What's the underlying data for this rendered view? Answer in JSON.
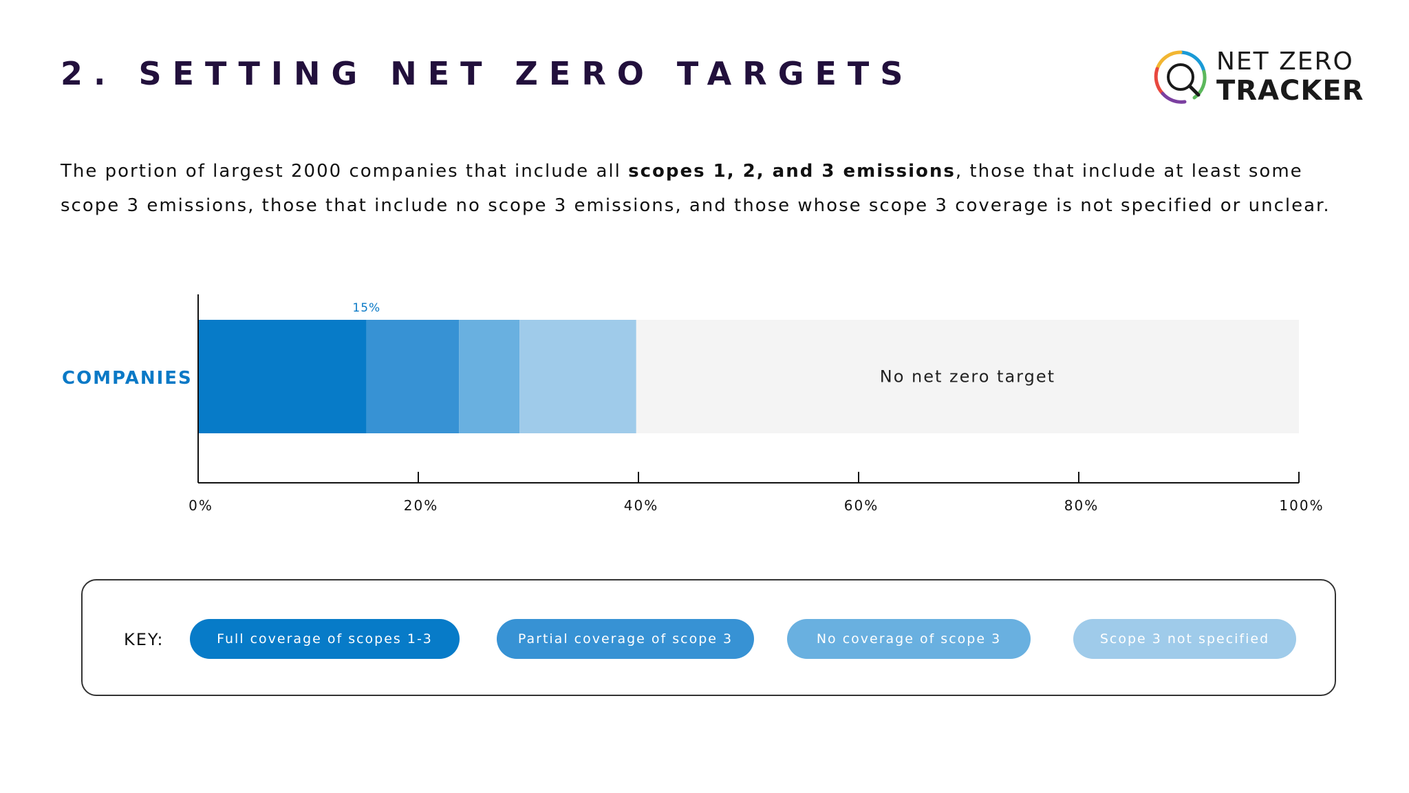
{
  "header": {
    "title": "2. SETTING NET ZERO TARGETS",
    "logo_line1": "NET ZERO",
    "logo_line2": "TRACKER"
  },
  "subtitle": {
    "part1": "The portion of largest 2000 companies that include all ",
    "bold": "scopes 1, 2, and 3 emissions",
    "part2": ", those that include at least some scope 3 emissions, those that include no scope 3 emissions, and those whose scope 3 coverage is not specified or unclear."
  },
  "colors": {
    "title": "#22103c",
    "full": "#077bc8",
    "partial": "#3792d4",
    "none": "#69b0e0",
    "unspecified": "#9fcbea",
    "no_target": "#f4f4f4",
    "category_label": "#0a79c6",
    "data_label": "#0a79c6"
  },
  "chart_data": {
    "type": "bar",
    "orientation": "horizontal",
    "stacked": true,
    "categories": [
      "COMPANIES"
    ],
    "series": [
      {
        "name": "Full coverage of scopes 1-3",
        "values": [
          15.3
        ],
        "color": "#077bc8",
        "label": "15%"
      },
      {
        "name": "Partial coverage of scope 3",
        "values": [
          8.4
        ],
        "color": "#3792d4",
        "label": ""
      },
      {
        "name": "No coverage of scope 3",
        "values": [
          5.5
        ],
        "color": "#69b0e0",
        "label": ""
      },
      {
        "name": "Scope 3 not specified",
        "values": [
          10.6
        ],
        "color": "#9fcbea",
        "label": ""
      },
      {
        "name": "",
        "values": [
          60.2
        ],
        "color": "#f4f4f4",
        "label": "No net zero target"
      }
    ],
    "x_ticks": [
      "0%",
      "20%",
      "40%",
      "60%",
      "80%",
      "100%"
    ],
    "xlim": [
      0,
      100
    ],
    "grid": false,
    "legend_title": "KEY:",
    "legend_position": "bottom"
  }
}
